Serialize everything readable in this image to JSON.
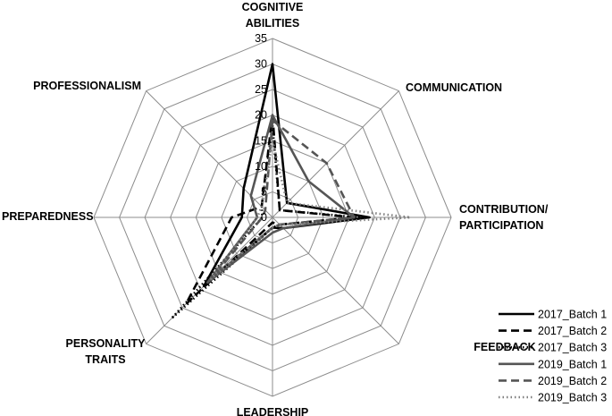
{
  "chart_data": {
    "type": "radar",
    "title": "",
    "axes": [
      "COGNITIVE ABILITIES",
      "COMMUNICATION",
      "CONTRIBUTION/ PARTICIPATION",
      "FEEDBACK",
      "LEADERSHIP",
      "PERSONALITY TRAITS",
      "PREPAREDNESS",
      "PROFESSIONALISM"
    ],
    "axis_label_lines": [
      [
        "COGNITIVE",
        "ABILITIES"
      ],
      [
        "COMMUNICATION"
      ],
      [
        "CONTRIBUTION/",
        "PARTICIPATION"
      ],
      [
        "FEEDBACK"
      ],
      [
        "LEADERSHIP"
      ],
      [
        "PERSONALITY",
        "TRAITS"
      ],
      [
        "PREPAREDNESS"
      ],
      [
        "PROFESSIONALISM"
      ]
    ],
    "ticks": [
      0,
      5,
      10,
      15,
      20,
      25,
      30,
      35
    ],
    "rlim": [
      0,
      35
    ],
    "grid": true,
    "legend_position": "bottom-right",
    "series": [
      {
        "name": "2017_Batch 1",
        "values": [
          30,
          4,
          19,
          3,
          2,
          19,
          6,
          8
        ],
        "color": "#000000",
        "style": "solid"
      },
      {
        "name": "2017_Batch 2",
        "values": [
          20,
          2,
          16,
          2,
          1,
          24,
          8,
          3
        ],
        "color": "#000000",
        "style": "dashed"
      },
      {
        "name": "2017_Batch 3",
        "values": [
          18,
          2,
          17,
          2,
          2,
          28,
          2,
          3
        ],
        "color": "#000000",
        "style": "dotted"
      },
      {
        "name": "2019_Batch 1",
        "values": [
          20,
          10,
          16,
          3,
          3,
          18,
          3,
          6
        ],
        "color": "#555555",
        "style": "solid"
      },
      {
        "name": "2019_Batch 2",
        "values": [
          19,
          15,
          16,
          2,
          2,
          17,
          2,
          2
        ],
        "color": "#555555",
        "style": "dashed"
      },
      {
        "name": "2019_Batch 3",
        "values": [
          15,
          4,
          27,
          2,
          2,
          17,
          3,
          3
        ],
        "color": "#808080",
        "style": "dotted"
      }
    ]
  }
}
